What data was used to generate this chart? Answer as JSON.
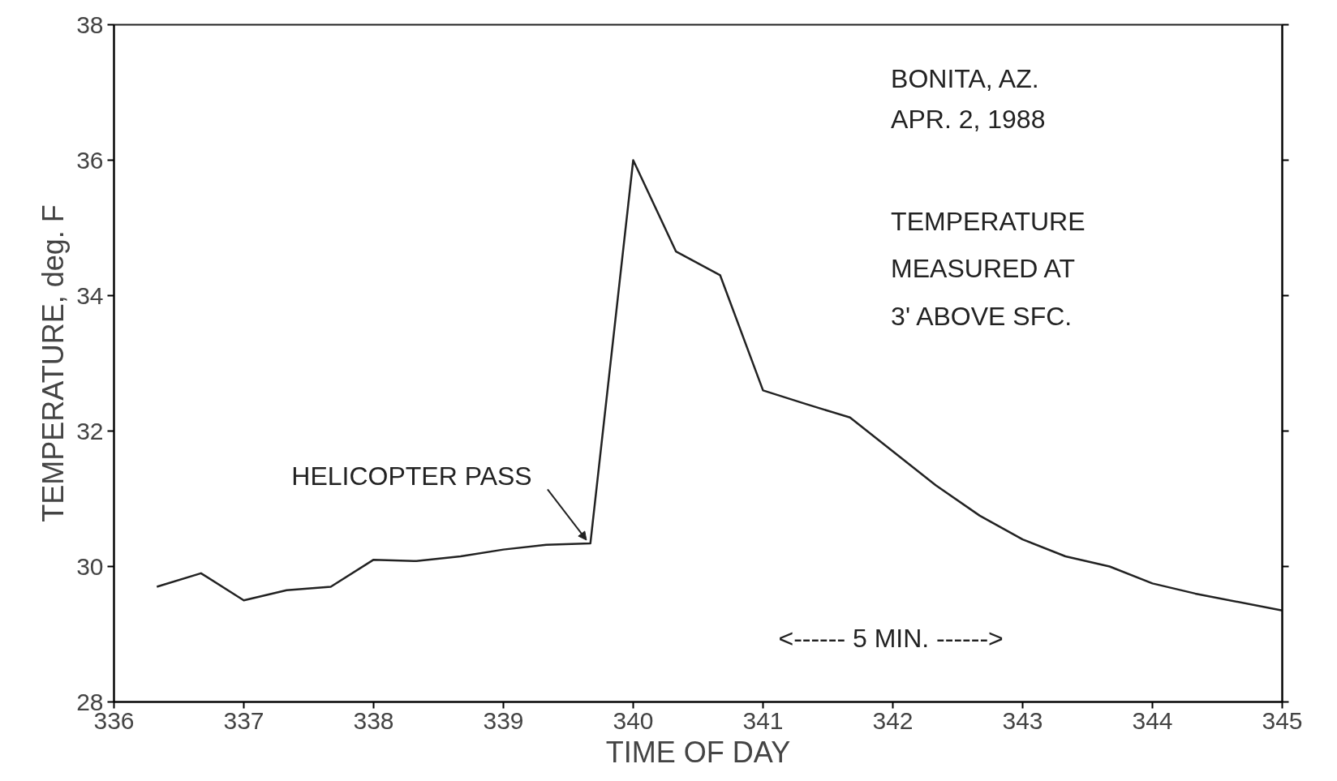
{
  "chart_data": {
    "type": "line",
    "xlabel": "TIME OF DAY",
    "ylabel": "TEMPERATURE, deg. F",
    "x": [
      336.33,
      336.67,
      337.0,
      337.33,
      337.67,
      338.0,
      338.33,
      338.67,
      339.0,
      339.33,
      339.67,
      340.0,
      340.33,
      340.67,
      341.0,
      341.33,
      341.67,
      342.0,
      342.33,
      342.67,
      343.0,
      343.33,
      343.67,
      344.0,
      344.33,
      345.0
    ],
    "series": [
      {
        "color": "#222222",
        "values": [
          29.7,
          29.9,
          29.5,
          29.65,
          29.7,
          30.1,
          30.08,
          30.15,
          30.25,
          30.32,
          30.34,
          36.0,
          34.65,
          34.3,
          32.6,
          32.4,
          32.2,
          31.7,
          31.2,
          30.75,
          30.4,
          30.15,
          30.0,
          29.75,
          29.6,
          29.35
        ]
      }
    ],
    "xlim": [
      336,
      345
    ],
    "ylim": [
      28,
      38
    ],
    "xticks": [
      336,
      337,
      338,
      339,
      340,
      341,
      342,
      343,
      344,
      345
    ],
    "yticks": [
      28,
      30,
      32,
      34,
      36,
      38
    ],
    "grid": false,
    "marker": "none",
    "line_style": "solid",
    "annotations": [
      "BONITA, AZ.",
      "APR. 2, 1988",
      "TEMPERATURE",
      "MEASURED AT",
      "3' ABOVE SFC.",
      "<------ 5 MIN. ------>",
      {
        "text": "HELICOPTER PASS",
        "x": 339.67,
        "y": 30.34
      }
    ]
  }
}
